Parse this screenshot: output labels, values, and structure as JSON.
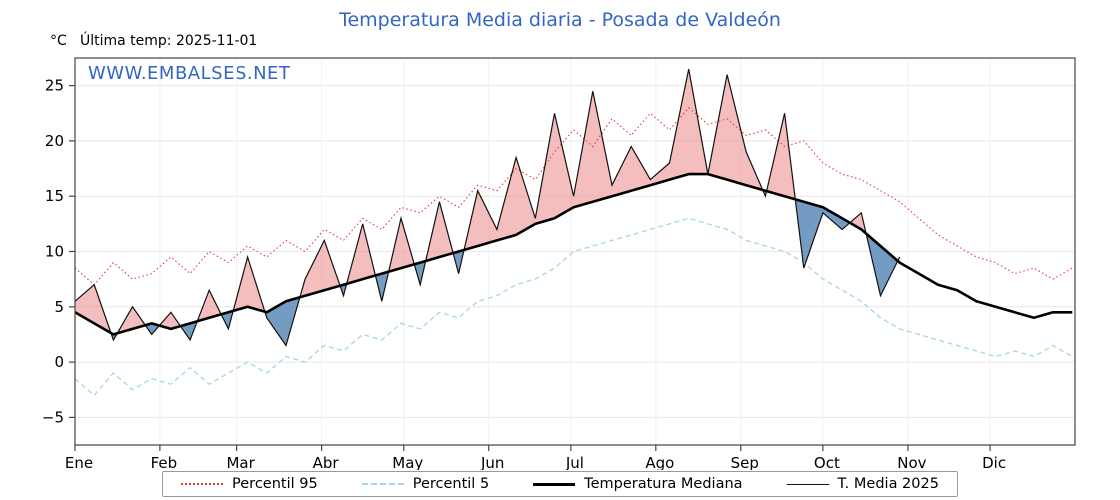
{
  "header": {
    "title": "Temperatura Media diaria - Posada de Valdeón",
    "unit_label": "°C",
    "last_temp_label": "Última temp: 2025-11-01",
    "watermark": "WWW.EMBALSES.NET"
  },
  "chart_data": {
    "type": "line",
    "title": "Temperatura Media diaria - Posada de Valdeón",
    "ylabel": "°C",
    "x_unit": "day_of_year",
    "ylim": [
      -7.5,
      27.5
    ],
    "yticks": [
      -5,
      0,
      5,
      10,
      15,
      20,
      25
    ],
    "grid": true,
    "legend_position": "bottom",
    "month_ticks": [
      {
        "label": "Ene",
        "day": 0
      },
      {
        "label": "Feb",
        "day": 31
      },
      {
        "label": "Mar",
        "day": 59
      },
      {
        "label": "Abr",
        "day": 90
      },
      {
        "label": "May",
        "day": 120
      },
      {
        "label": "Jun",
        "day": 151
      },
      {
        "label": "Jul",
        "day": 181
      },
      {
        "label": "Ago",
        "day": 212
      },
      {
        "label": "Sep",
        "day": 243
      },
      {
        "label": "Oct",
        "day": 273
      },
      {
        "label": "Nov",
        "day": 304
      },
      {
        "label": "Dic",
        "day": 334
      }
    ],
    "x": [
      0,
      7,
      14,
      21,
      28,
      35,
      42,
      49,
      56,
      63,
      70,
      77,
      84,
      91,
      98,
      105,
      112,
      119,
      126,
      133,
      140,
      147,
      154,
      161,
      168,
      175,
      182,
      189,
      196,
      203,
      210,
      217,
      224,
      231,
      238,
      245,
      252,
      259,
      266,
      273,
      280,
      287,
      294,
      301,
      308,
      315,
      322,
      329,
      336,
      343,
      350,
      357,
      364
    ],
    "series": [
      {
        "name": "Percentil 95",
        "color": "#e23b3b",
        "style": "dotted",
        "values": [
          8.5,
          7,
          9,
          7.5,
          8,
          9.5,
          8,
          10,
          9,
          10.5,
          9.5,
          11,
          10,
          12,
          11,
          13,
          12,
          14,
          13.5,
          15,
          14,
          16,
          15.5,
          17.5,
          16.5,
          19,
          21,
          19.5,
          22,
          20.5,
          22.5,
          21,
          23,
          21.5,
          22,
          20.5,
          21,
          19.5,
          20,
          18,
          17,
          16.5,
          15.5,
          14.5,
          13,
          11.5,
          10.5,
          9.5,
          9,
          8,
          8.5,
          7.5,
          8.5
        ]
      },
      {
        "name": "Percentil 5",
        "color": "#a8d4e8",
        "style": "dashed",
        "values": [
          -1.5,
          -3,
          -1,
          -2.5,
          -1.5,
          -2,
          -0.5,
          -2,
          -1,
          0,
          -1,
          0.5,
          0,
          1.5,
          1,
          2.5,
          2,
          3.5,
          3,
          4.5,
          4,
          5.5,
          6,
          7,
          7.5,
          8.5,
          10,
          10.5,
          11,
          11.5,
          12,
          12.5,
          13,
          12.5,
          12,
          11,
          10.5,
          10,
          9,
          7.5,
          6.5,
          5.5,
          4,
          3,
          2.5,
          2,
          1.5,
          1,
          0.5,
          1,
          0.5,
          1.5,
          0.5
        ]
      },
      {
        "name": "Temperatura Mediana",
        "color": "#000000",
        "style": "solid-thick",
        "values": [
          4.5,
          3.5,
          2.5,
          3,
          3.5,
          3,
          3.5,
          4,
          4.5,
          5,
          4.5,
          5.5,
          6,
          6.5,
          7,
          7.5,
          8,
          8.5,
          9,
          9.5,
          10,
          10.5,
          11,
          11.5,
          12.5,
          13,
          14,
          14.5,
          15,
          15.5,
          16,
          16.5,
          17,
          17,
          16.5,
          16,
          15.5,
          15,
          14.5,
          14,
          13,
          12,
          10.5,
          9,
          8,
          7,
          6.5,
          5.5,
          5,
          4.5,
          4,
          4.5,
          4.5
        ]
      },
      {
        "name": "T. Media 2025",
        "color": "#111111",
        "style": "solid-thin",
        "values": [
          5.5,
          7,
          2,
          5,
          2.5,
          4.5,
          2,
          6.5,
          3,
          9.5,
          4,
          1.5,
          7.5,
          11,
          6,
          12.5,
          5.5,
          13,
          7,
          14.5,
          8,
          15.5,
          12,
          18.5,
          13,
          22.5,
          15,
          24.5,
          16,
          19.5,
          16.5,
          18,
          26.5,
          17,
          26,
          19,
          15,
          22.5,
          8.5,
          13.5,
          12,
          13.5,
          6,
          9.5,
          null,
          null,
          null,
          null,
          null,
          null,
          null,
          null,
          null
        ]
      }
    ],
    "colors": {
      "title": "#3465c4",
      "watermark": "#3465c4",
      "fill_above_median": "#ee9292",
      "fill_below_median": "#6591bd",
      "grid": "#e7e7e7",
      "axis": "#444444"
    }
  }
}
